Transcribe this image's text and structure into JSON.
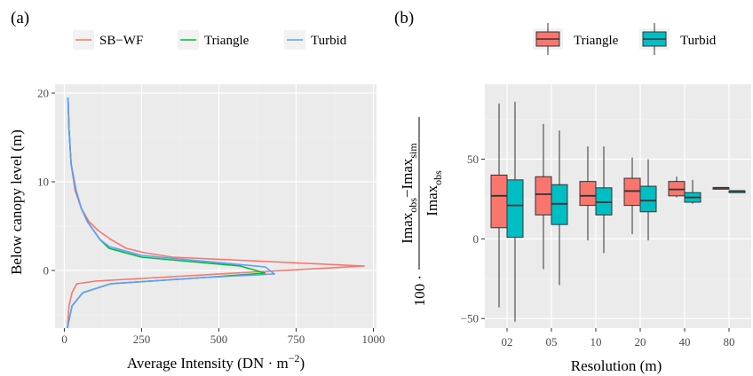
{
  "panels": {
    "a": "(a)",
    "b": "(b)"
  },
  "colors": {
    "panel_bg": "#ebebeb",
    "grid_major": "#ffffff",
    "grid_minor": "#f5f5f5",
    "SB-WF": "#f8766d",
    "Triangle_line": "#00ba38",
    "Turbid_line": "#619cff",
    "Triangle_box": "#f8766d",
    "Turbid_box": "#00bfc4"
  },
  "chart_data": [
    {
      "type": "line",
      "panel": "(a)",
      "xlabel": "Average Intensity (DN · m",
      "xlabel_sup": "−2",
      "xlabel_close": ")",
      "ylabel": "Below canopy level (m)",
      "xlim": [
        -30,
        1010
      ],
      "ylim": [
        -6.5,
        21.0
      ],
      "xticks": [
        0,
        250,
        500,
        750,
        1000
      ],
      "xtick_labels": [
        "0",
        "250",
        "500",
        "750",
        "1000"
      ],
      "yticks": [
        0,
        10,
        20
      ],
      "ytick_labels": [
        "0",
        "10",
        "20"
      ],
      "legend_position": "top",
      "series": [
        {
          "name": "SB−WF",
          "points": [
            [
              12,
              19.5
            ],
            [
              15,
              16
            ],
            [
              22,
              12
            ],
            [
              35,
              9
            ],
            [
              55,
              7
            ],
            [
              80,
              5.5
            ],
            [
              110,
              4.5
            ],
            [
              150,
              3.5
            ],
            [
              200,
              2.5
            ],
            [
              260,
              2
            ],
            [
              350,
              1.5
            ],
            [
              600,
              1.1
            ],
            [
              970,
              0.5
            ],
            [
              600,
              -0.2
            ],
            [
              300,
              -0.8
            ],
            [
              100,
              -1.2
            ],
            [
              40,
              -1.5
            ],
            [
              25,
              -2.5
            ],
            [
              15,
              -4
            ],
            [
              10,
              -6.5
            ]
          ]
        },
        {
          "name": "Triangle",
          "points": [
            [
              12,
              19.5
            ],
            [
              15,
              16
            ],
            [
              22,
              12
            ],
            [
              38,
              9
            ],
            [
              55,
              7
            ],
            [
              75,
              5.5
            ],
            [
              95,
              4.5
            ],
            [
              115,
              3.5
            ],
            [
              145,
              2.5
            ],
            [
              250,
              1.5
            ],
            [
              570,
              0.5
            ],
            [
              650,
              -0.3
            ],
            [
              450,
              -0.8
            ],
            [
              150,
              -1.5
            ],
            [
              60,
              -2.5
            ],
            [
              25,
              -4
            ],
            [
              10,
              -6.5
            ]
          ]
        },
        {
          "name": "Turbid",
          "points": [
            [
              12,
              19.5
            ],
            [
              15,
              16
            ],
            [
              22,
              12
            ],
            [
              38,
              9
            ],
            [
              55,
              7
            ],
            [
              75,
              5.5
            ],
            [
              95,
              4.5
            ],
            [
              115,
              3.5
            ],
            [
              145,
              2.7
            ],
            [
              250,
              1.7
            ],
            [
              650,
              0.4
            ],
            [
              680,
              -0.4
            ],
            [
              450,
              -0.8
            ],
            [
              150,
              -1.5
            ],
            [
              60,
              -2.5
            ],
            [
              25,
              -4
            ],
            [
              10,
              -6.5
            ]
          ]
        }
      ]
    },
    {
      "type": "box",
      "panel": "(b)",
      "xlabel": "Resolution (m)",
      "ylabel_prefix": "100 ·",
      "ylabel_numerator": "Imax",
      "ylabel_numerator_sub1": "obs",
      "ylabel_numerator_mid": "−Imax",
      "ylabel_numerator_sub2": "sim",
      "ylabel_denominator": "Imax",
      "ylabel_denominator_sub": "obs",
      "categories": [
        "02",
        "05",
        "10",
        "20",
        "40",
        "80"
      ],
      "ylim": [
        -56,
        97
      ],
      "yticks": [
        -50,
        0,
        50
      ],
      "ytick_labels": [
        "−50",
        "0",
        "50"
      ],
      "legend_position": "top",
      "series": [
        {
          "name": "Triangle",
          "boxes": [
            {
              "min": -43,
              "q1": 7,
              "median": 27,
              "q3": 40,
              "max": 85
            },
            {
              "min": -19,
              "q1": 15,
              "median": 28,
              "q3": 39,
              "max": 72
            },
            {
              "min": -1,
              "q1": 21,
              "median": 27,
              "q3": 36,
              "max": 58
            },
            {
              "min": 3,
              "q1": 21,
              "median": 30,
              "q3": 38,
              "max": 51
            },
            {
              "min": 26,
              "q1": 27,
              "median": 31,
              "q3": 36,
              "max": 39
            },
            {
              "min": 32,
              "q1": 32,
              "median": 32,
              "q3": 32,
              "max": 32
            }
          ]
        },
        {
          "name": "Turbid",
          "boxes": [
            {
              "min": -52,
              "q1": 1,
              "median": 21,
              "q3": 37,
              "max": 86
            },
            {
              "min": -29,
              "q1": 9,
              "median": 22,
              "q3": 34,
              "max": 68
            },
            {
              "min": -9,
              "q1": 15,
              "median": 23,
              "q3": 32,
              "max": 58
            },
            {
              "min": -1,
              "q1": 17,
              "median": 24,
              "q3": 33,
              "max": 50
            },
            {
              "min": 22,
              "q1": 23,
              "median": 26,
              "q3": 29,
              "max": 37
            },
            {
              "min": 29,
              "q1": 29,
              "median": 30,
              "q3": 30,
              "max": 30
            }
          ]
        }
      ]
    }
  ]
}
